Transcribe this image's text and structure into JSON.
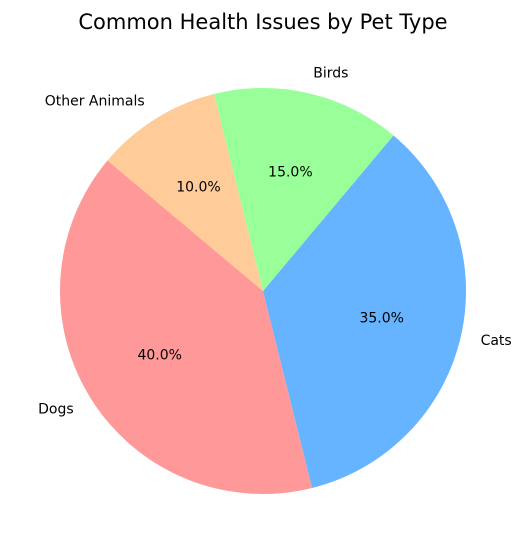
{
  "chart_data": {
    "type": "pie",
    "title": "Common Health Issues by Pet Type",
    "start_angle_deg": 140,
    "direction": "counterclockwise",
    "slices": [
      {
        "label": "Dogs",
        "value": 40.0,
        "pct_label": "40.0%",
        "color": "#ff9999"
      },
      {
        "label": "Cats",
        "value": 35.0,
        "pct_label": "35.0%",
        "color": "#66b3ff"
      },
      {
        "label": "Birds",
        "value": 15.0,
        "pct_label": "15.0%",
        "color": "#99ff99"
      },
      {
        "label": "Other Animals",
        "value": 10.0,
        "pct_label": "10.0%",
        "color": "#ffcc99"
      }
    ]
  }
}
